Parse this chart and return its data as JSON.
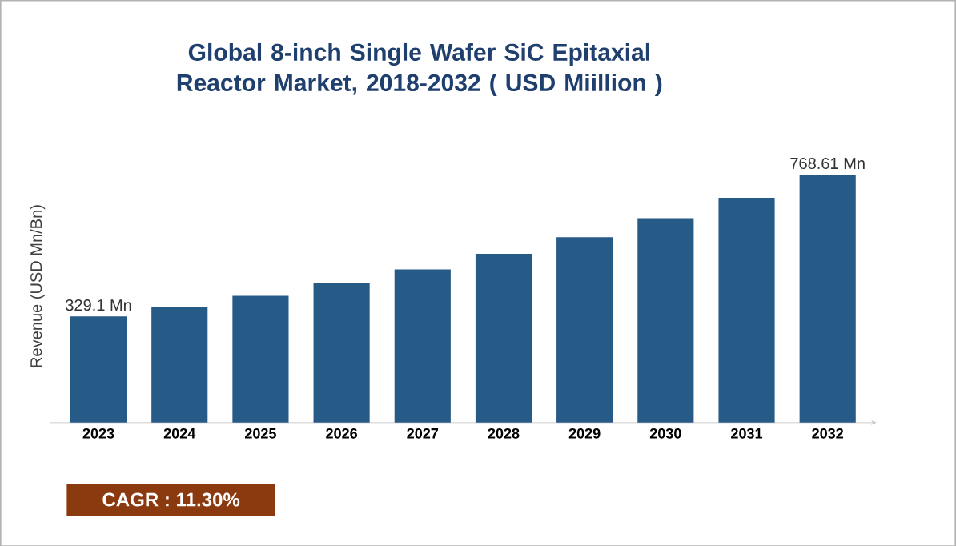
{
  "chart_data": {
    "type": "bar",
    "title": "Global 8-inch Single Wafer SiC Epitaxial Reactor Market, 2018-2032 ( USD Miillion )",
    "ylabel": "Revenue (USD Mn/Bn)",
    "categories": [
      "2023",
      "2024",
      "2025",
      "2026",
      "2027",
      "2028",
      "2029",
      "2030",
      "2031",
      "2032"
    ],
    "values": [
      329.1,
      358,
      393,
      432,
      475,
      523,
      575,
      634,
      697,
      768.61
    ],
    "value_labels": [
      "329.1 Mn",
      null,
      null,
      null,
      null,
      null,
      null,
      null,
      null,
      "768.61 Mn"
    ],
    "color": "#265a87",
    "tick_labels": "x",
    "annotations": [
      "CAGR : 11.30%"
    ]
  }
}
